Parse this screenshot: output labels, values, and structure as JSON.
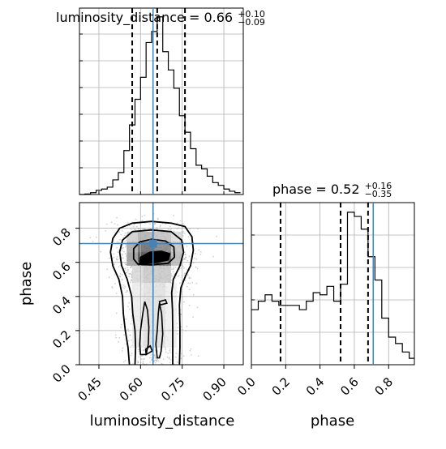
{
  "chart_data": [
    {
      "type": "histogram",
      "panel": "top-left",
      "title_param": "luminosity_distance",
      "title_value": "0.66",
      "title_plus": "+0.10",
      "title_minus": "−0.09",
      "xlim": [
        0.38,
        0.97
      ],
      "bin_edges": [
        0.38,
        0.4,
        0.42,
        0.44,
        0.46,
        0.48,
        0.5,
        0.52,
        0.54,
        0.56,
        0.58,
        0.6,
        0.62,
        0.64,
        0.66,
        0.68,
        0.7,
        0.72,
        0.74,
        0.76,
        0.78,
        0.8,
        0.82,
        0.84,
        0.86,
        0.88,
        0.9,
        0.92,
        0.94,
        0.96
      ],
      "heights": [
        0.0,
        0.003,
        0.01,
        0.023,
        0.03,
        0.04,
        0.08,
        0.12,
        0.24,
        0.38,
        0.52,
        0.64,
        0.83,
        0.89,
        0.97,
        0.78,
        0.68,
        0.58,
        0.43,
        0.34,
        0.25,
        0.16,
        0.14,
        0.1,
        0.065,
        0.05,
        0.03,
        0.018,
        0.01
      ],
      "quantile_lines": [
        0.57,
        0.66,
        0.76
      ],
      "truth_line": 0.645
    },
    {
      "type": "scatter-contour",
      "panel": "bottom-left",
      "xlabel": "luminosity_distance",
      "ylabel": "phase",
      "xlim": [
        0.38,
        0.97
      ],
      "ylim": [
        0.0,
        0.95
      ],
      "xticks": [
        "0.45",
        "0.60",
        "0.75",
        "0.90"
      ],
      "xtick_values": [
        0.45,
        0.6,
        0.75,
        0.9
      ],
      "yticks": [
        "0.0",
        "0.2",
        "0.4",
        "0.6",
        "0.8"
      ],
      "ytick_values": [
        0.0,
        0.2,
        0.4,
        0.6,
        0.8
      ],
      "truth": [
        0.645,
        0.71
      ],
      "density_cells": [
        {
          "x0": 0.55,
          "x1": 0.59,
          "y0": 0.72,
          "y1": 0.78,
          "v": 0.25
        },
        {
          "x0": 0.59,
          "x1": 0.65,
          "y0": 0.72,
          "y1": 0.78,
          "v": 0.4
        },
        {
          "x0": 0.65,
          "x1": 0.71,
          "y0": 0.72,
          "y1": 0.78,
          "v": 0.32
        },
        {
          "x0": 0.71,
          "x1": 0.75,
          "y0": 0.72,
          "y1": 0.78,
          "v": 0.18
        },
        {
          "x0": 0.55,
          "x1": 0.59,
          "y0": 0.66,
          "y1": 0.72,
          "v": 0.45
        },
        {
          "x0": 0.59,
          "x1": 0.65,
          "y0": 0.66,
          "y1": 0.72,
          "v": 0.75
        },
        {
          "x0": 0.65,
          "x1": 0.71,
          "y0": 0.66,
          "y1": 0.72,
          "v": 0.62
        },
        {
          "x0": 0.71,
          "x1": 0.75,
          "y0": 0.66,
          "y1": 0.72,
          "v": 0.3
        },
        {
          "x0": 0.55,
          "x1": 0.59,
          "y0": 0.58,
          "y1": 0.66,
          "v": 0.5
        },
        {
          "x0": 0.59,
          "x1": 0.65,
          "y0": 0.58,
          "y1": 0.66,
          "v": 0.9
        },
        {
          "x0": 0.65,
          "x1": 0.71,
          "y0": 0.58,
          "y1": 0.66,
          "v": 0.8
        },
        {
          "x0": 0.71,
          "x1": 0.75,
          "y0": 0.58,
          "y1": 0.66,
          "v": 0.35
        },
        {
          "x0": 0.57,
          "x1": 0.61,
          "y0": 0.48,
          "y1": 0.58,
          "v": 0.2
        },
        {
          "x0": 0.61,
          "x1": 0.71,
          "y0": 0.48,
          "y1": 0.58,
          "v": 0.28
        },
        {
          "x0": 0.57,
          "x1": 0.61,
          "y0": 0.1,
          "y1": 0.48,
          "v": 0.1
        },
        {
          "x0": 0.61,
          "x1": 0.69,
          "y0": 0.1,
          "y1": 0.48,
          "v": 0.16
        },
        {
          "x0": 0.69,
          "x1": 0.73,
          "y0": 0.1,
          "y1": 0.48,
          "v": 0.08
        }
      ],
      "contour_levels": [
        {
          "name": "outer",
          "points": [
            [
              0.56,
              0.0
            ],
            [
              0.555,
              0.1
            ],
            [
              0.545,
              0.2
            ],
            [
              0.538,
              0.3
            ],
            [
              0.535,
              0.4
            ],
            [
              0.522,
              0.5
            ],
            [
              0.5,
              0.58
            ],
            [
              0.492,
              0.66
            ],
            [
              0.5,
              0.74
            ],
            [
              0.525,
              0.8
            ],
            [
              0.57,
              0.83
            ],
            [
              0.64,
              0.84
            ],
            [
              0.71,
              0.83
            ],
            [
              0.76,
              0.81
            ],
            [
              0.785,
              0.75
            ],
            [
              0.79,
              0.67
            ],
            [
              0.78,
              0.58
            ],
            [
              0.762,
              0.52
            ],
            [
              0.745,
              0.45
            ],
            [
              0.74,
              0.35
            ],
            [
              0.742,
              0.22
            ],
            [
              0.742,
              0.1
            ],
            [
              0.74,
              0.0
            ]
          ]
        },
        {
          "name": "mid",
          "points": [
            [
              0.58,
              0.0
            ],
            [
              0.582,
              0.1
            ],
            [
              0.58,
              0.2
            ],
            [
              0.572,
              0.3
            ],
            [
              0.568,
              0.4
            ],
            [
              0.552,
              0.5
            ],
            [
              0.532,
              0.58
            ],
            [
              0.525,
              0.66
            ],
            [
              0.535,
              0.73
            ],
            [
              0.57,
              0.78
            ],
            [
              0.64,
              0.79
            ],
            [
              0.71,
              0.78
            ],
            [
              0.748,
              0.73
            ],
            [
              0.755,
              0.66
            ],
            [
              0.742,
              0.58
            ],
            [
              0.718,
              0.5
            ],
            [
              0.712,
              0.42
            ],
            [
              0.715,
              0.32
            ],
            [
              0.716,
              0.2
            ],
            [
              0.716,
              0.1
            ],
            [
              0.716,
              0.0
            ]
          ]
        },
        {
          "name": "inner",
          "points": [
            [
              0.59,
              0.59
            ],
            [
              0.575,
              0.62
            ],
            [
              0.575,
              0.68
            ],
            [
              0.598,
              0.72
            ],
            [
              0.64,
              0.735
            ],
            [
              0.69,
              0.725
            ],
            [
              0.72,
              0.69
            ],
            [
              0.722,
              0.63
            ],
            [
              0.7,
              0.595
            ],
            [
              0.64,
              0.585
            ]
          ]
        },
        {
          "name": "core",
          "points": [
            [
              0.597,
              0.595
            ],
            [
              0.6,
              0.63
            ],
            [
              0.635,
              0.66
            ],
            [
              0.675,
              0.665
            ],
            [
              0.705,
              0.65
            ],
            [
              0.7,
              0.615
            ],
            [
              0.66,
              0.6
            ],
            [
              0.62,
              0.595
            ]
          ]
        }
      ],
      "extra_loops": [
        [
          [
            0.6,
            0.06
          ],
          [
            0.597,
            0.12
          ],
          [
            0.6,
            0.2
          ],
          [
            0.608,
            0.3
          ],
          [
            0.615,
            0.37
          ],
          [
            0.625,
            0.32
          ],
          [
            0.63,
            0.22
          ],
          [
            0.628,
            0.12
          ],
          [
            0.62,
            0.06
          ]
        ],
        [
          [
            0.66,
            0.04
          ],
          [
            0.655,
            0.12
          ],
          [
            0.66,
            0.2
          ],
          [
            0.664,
            0.3
          ],
          [
            0.668,
            0.36
          ],
          [
            0.676,
            0.3
          ],
          [
            0.68,
            0.18
          ],
          [
            0.674,
            0.08
          ],
          [
            0.668,
            0.04
          ]
        ],
        [
          [
            0.62,
            0.06
          ],
          [
            0.618,
            0.09
          ],
          [
            0.635,
            0.11
          ],
          [
            0.642,
            0.08
          ]
        ],
        [
          [
            0.67,
            0.35
          ],
          [
            0.668,
            0.37
          ],
          [
            0.69,
            0.38
          ],
          [
            0.695,
            0.36
          ]
        ]
      ]
    },
    {
      "type": "histogram",
      "panel": "bottom-right",
      "title_param": "phase",
      "title_value": "0.52",
      "title_plus": "+0.16",
      "title_minus": "−0.35",
      "xlabel": "phase",
      "xlim": [
        0.0,
        0.95
      ],
      "xticks": [
        "0.0",
        "0.2",
        "0.4",
        "0.6",
        "0.8"
      ],
      "xtick_values": [
        0.0,
        0.2,
        0.4,
        0.6,
        0.8
      ],
      "bin_edges": [
        0.0,
        0.04,
        0.08,
        0.12,
        0.16,
        0.2,
        0.24,
        0.28,
        0.32,
        0.36,
        0.4,
        0.44,
        0.48,
        0.52,
        0.56,
        0.6,
        0.64,
        0.68,
        0.72,
        0.76,
        0.8,
        0.84,
        0.88,
        0.92,
        0.95
      ],
      "heights": [
        0.26,
        0.3,
        0.33,
        0.3,
        0.28,
        0.28,
        0.28,
        0.26,
        0.3,
        0.34,
        0.33,
        0.37,
        0.3,
        0.38,
        0.72,
        0.7,
        0.64,
        0.51,
        0.4,
        0.22,
        0.13,
        0.1,
        0.06,
        0.03
      ],
      "quantile_lines": [
        0.17,
        0.52,
        0.68
      ],
      "truth_line": 0.71
    }
  ],
  "colors": {
    "truth": "#4682b4",
    "line": "#000000",
    "grid": "#b0b0b0",
    "scatter": "#9a9a9a"
  }
}
